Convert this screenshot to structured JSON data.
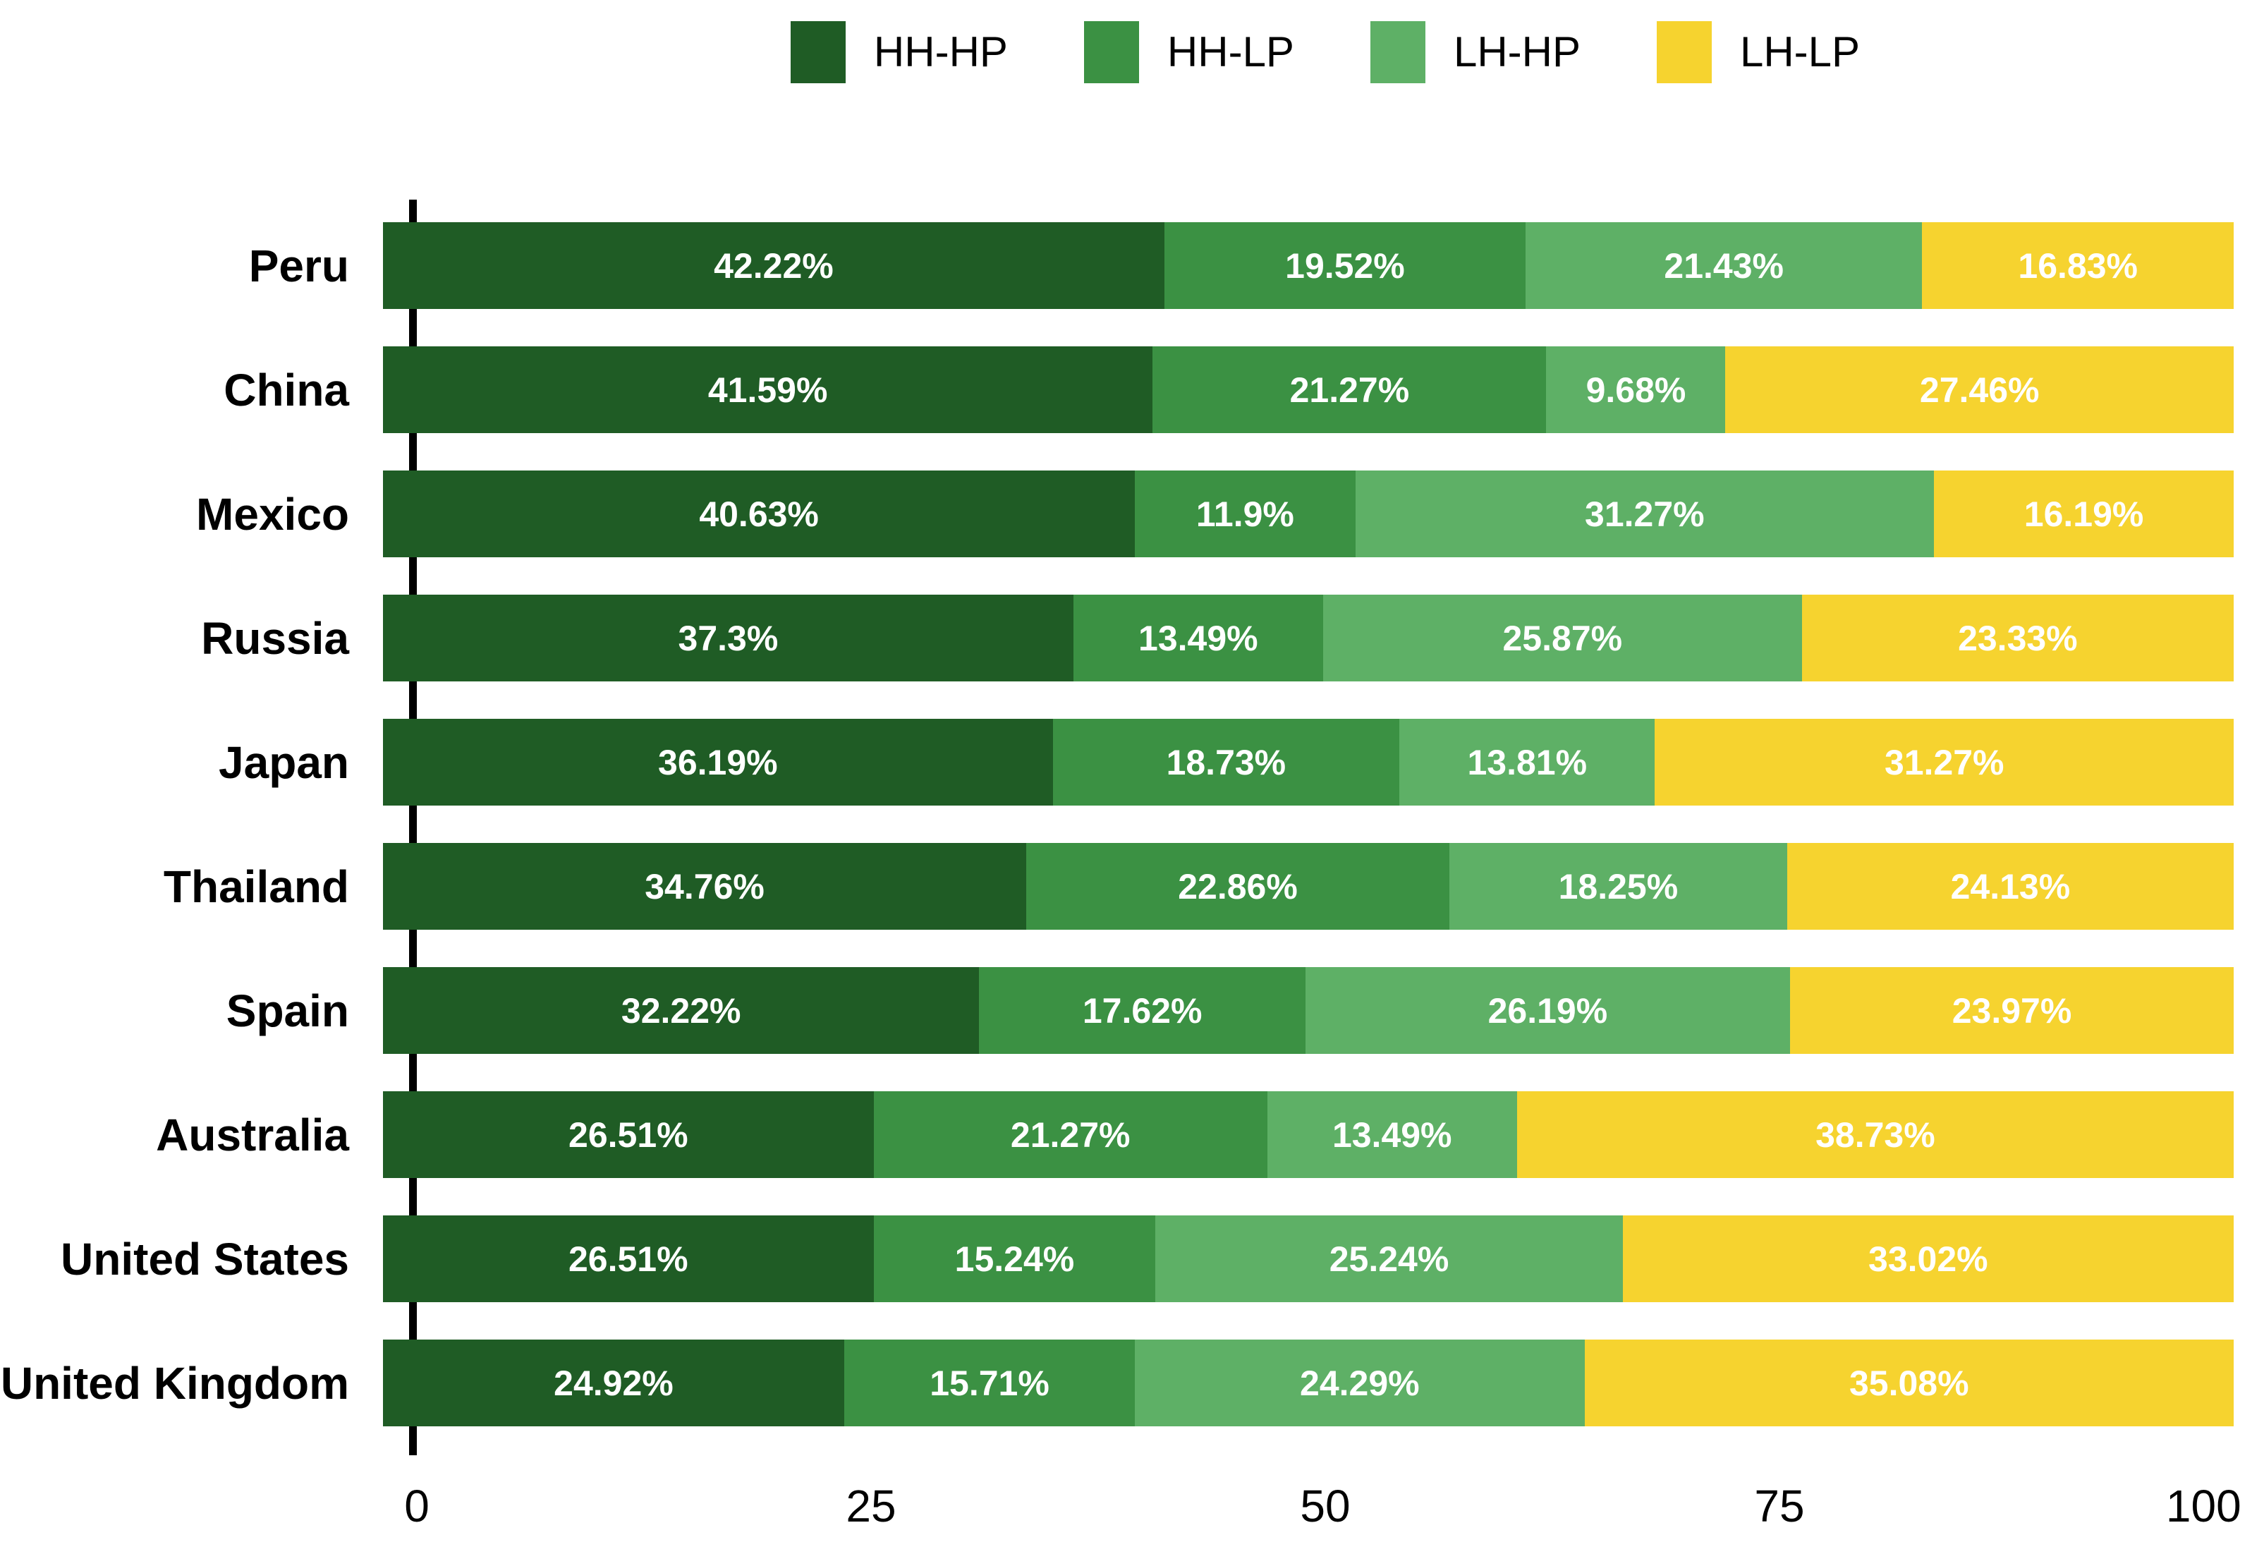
{
  "chart_data": {
    "type": "bar",
    "stacked": true,
    "orientation": "horizontal",
    "title": "",
    "xlabel": "",
    "ylabel": "",
    "xlim": [
      0,
      100
    ],
    "xticks": [
      0,
      25,
      50,
      75,
      100
    ],
    "grid": false,
    "legend_position": "top-center",
    "value_suffix": "%",
    "value_label_color": "#ffffff",
    "categories": [
      "Peru",
      "China",
      "Mexico",
      "Russia",
      "Japan",
      "Thailand",
      "Spain",
      "Australia",
      "United States",
      "United Kingdom"
    ],
    "series": [
      {
        "name": "HH-HP",
        "color": "#1f5c25",
        "values": [
          42.22,
          41.59,
          40.63,
          37.3,
          36.19,
          34.76,
          32.22,
          26.51,
          26.51,
          24.92
        ]
      },
      {
        "name": "HH-LP",
        "color": "#3b9143",
        "values": [
          19.52,
          21.27,
          11.9,
          13.49,
          18.73,
          22.86,
          17.62,
          21.27,
          15.24,
          15.71
        ]
      },
      {
        "name": "LH-HP",
        "color": "#5eb066",
        "values": [
          21.43,
          9.68,
          31.27,
          25.87,
          13.81,
          18.25,
          26.19,
          13.49,
          25.24,
          24.29
        ]
      },
      {
        "name": "LH-LP",
        "color": "#f6d32f",
        "values": [
          16.83,
          27.46,
          16.19,
          23.33,
          31.27,
          24.13,
          23.97,
          38.73,
          33.02,
          35.08
        ]
      }
    ]
  }
}
